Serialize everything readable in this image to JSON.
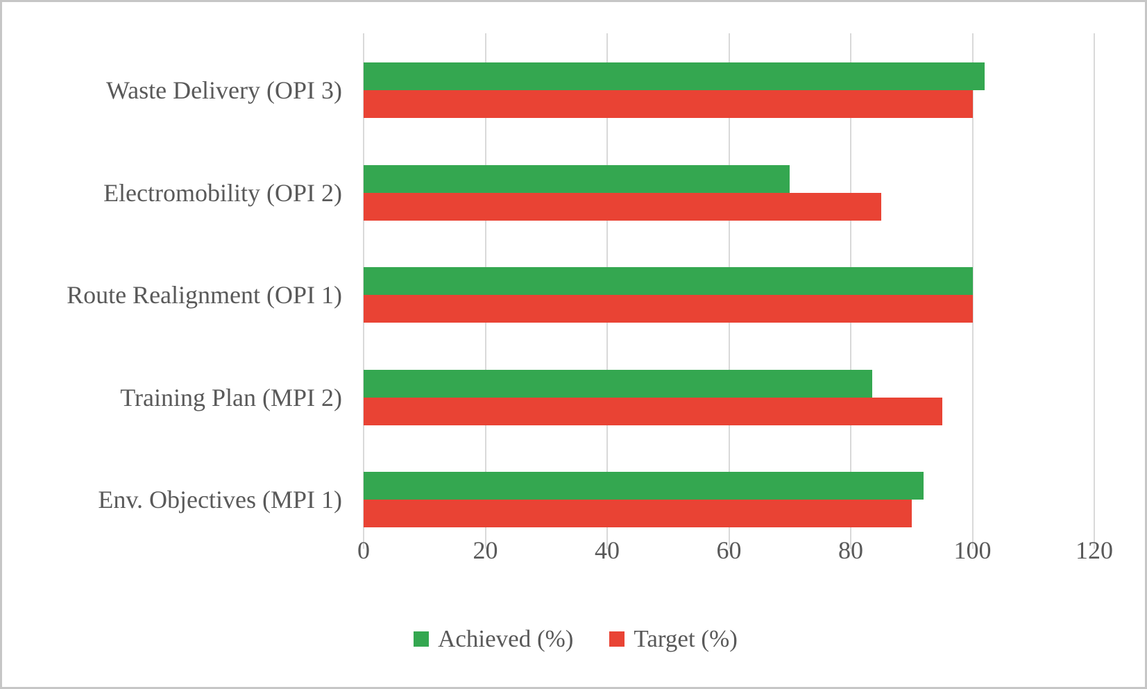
{
  "figure": {
    "background": "#ffffff",
    "border_color": "#c6c6c6",
    "text_color": "#595959",
    "gridline_color": "#d9d9d9"
  },
  "chart_data": {
    "type": "bar",
    "orientation": "horizontal",
    "title": "",
    "xlabel": "",
    "ylabel": "",
    "categories": [
      "Waste Delivery (OPI 3)",
      "Electromobility (OPI 2)",
      "Route Realignment (OPI 1)",
      "Training Plan (MPI 2)",
      "Env. Objectives (MPI 1)"
    ],
    "series": [
      {
        "name": "Achieved (%)",
        "color": "#34a750",
        "values": [
          102,
          70,
          100,
          83.5,
          92
        ]
      },
      {
        "name": "Target (%)",
        "color": "#e94334",
        "values": [
          100,
          85,
          100,
          95,
          90
        ]
      }
    ],
    "xlim": [
      0,
      120
    ],
    "x_ticks": [
      0,
      20,
      40,
      60,
      80,
      100,
      120
    ],
    "grid": "vertical-gridlines-on",
    "legend_position": "bottom"
  }
}
